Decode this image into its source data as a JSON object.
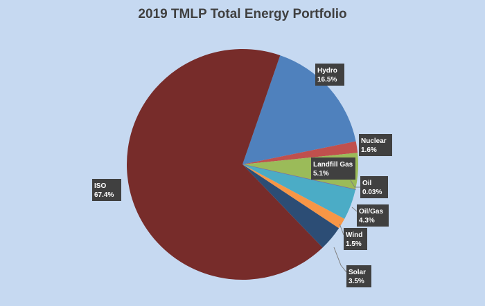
{
  "chart_data": {
    "type": "pie",
    "title": "2019 TMLP Total Energy Portfolio",
    "slices": [
      {
        "name": "Hydro",
        "value": 16.5,
        "label": "16.5%",
        "color": "#4f81bd"
      },
      {
        "name": "Nuclear",
        "value": 1.6,
        "label": "1.6%",
        "color": "#c0504d"
      },
      {
        "name": "Landfill Gas",
        "value": 5.1,
        "label": "5.1%",
        "color": "#9bbb59"
      },
      {
        "name": "Oil",
        "value": 0.03,
        "label": "0.03%",
        "color": "#8064a2"
      },
      {
        "name": "Oil/Gas",
        "value": 4.3,
        "label": "4.3%",
        "color": "#4bacc6"
      },
      {
        "name": "Wind",
        "value": 1.5,
        "label": "1.5%",
        "color": "#f79646"
      },
      {
        "name": "Solar",
        "value": 3.5,
        "label": "3.5%",
        "color": "#2c4d75"
      },
      {
        "name": "ISO",
        "value": 67.4,
        "label": "67.4%",
        "color": "#772c2a"
      }
    ],
    "start_angle_deg": 19,
    "legend": "none",
    "data_labels": "outside with leader lines"
  }
}
